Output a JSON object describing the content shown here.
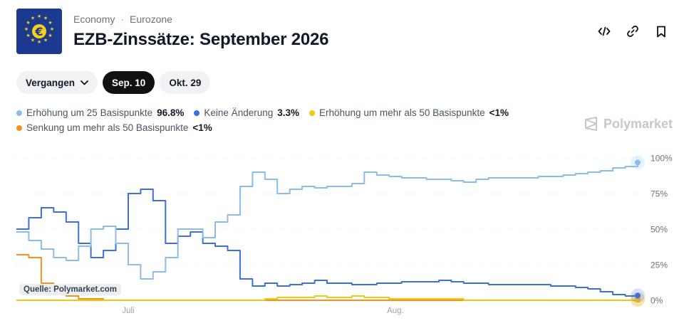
{
  "header": {
    "breadcrumb": [
      "Economy",
      "Eurozone"
    ],
    "title": "EZB-Zinssätze: September 2026",
    "logo_symbol": "€"
  },
  "icons": {
    "logo": "eu-flag-euro-icon",
    "embed": "code-icon",
    "link": "link-icon",
    "bookmark": "bookmark-icon",
    "dropdown": "chevron-down-icon",
    "brand": "polymarket-logo-icon"
  },
  "filters": {
    "dropdown_label": "Vergangen",
    "dates": [
      {
        "label": "Sep. 10",
        "active": true
      },
      {
        "label": "Okt. 29",
        "active": false
      }
    ]
  },
  "legend": [
    {
      "name": "Erhöhung um 25 Basispunkte",
      "value": "96.8%",
      "color": "#8bbcee"
    },
    {
      "name": "Keine Änderung",
      "value": "3.3%",
      "color": "#3d6fe0"
    },
    {
      "name": "Erhöhung um mehr als 50 Basispunkte",
      "value": "<1%",
      "color": "#f2c811"
    },
    {
      "name": "Senkung um mehr als 50 Basispunkte",
      "value": "<1%",
      "color": "#f7931a"
    }
  ],
  "brand": "Polymarket",
  "source": "Quelle: Polymarket.com",
  "chart_data": {
    "type": "line",
    "x": [
      0,
      2,
      4,
      6,
      8,
      10,
      12,
      14,
      16,
      18,
      20,
      22,
      24,
      26,
      28,
      30,
      32,
      34,
      36,
      38,
      40,
      42,
      44,
      46,
      48,
      50,
      52,
      54,
      56,
      58,
      60,
      62,
      64,
      66,
      68,
      70,
      72,
      74,
      76,
      78,
      80,
      82,
      84,
      86,
      88,
      90,
      92,
      94,
      96,
      98,
      100
    ],
    "x_ticks": [
      {
        "label": "Juli",
        "x": 18
      },
      {
        "label": "Aug.",
        "x": 61
      }
    ],
    "y_ticks": [
      "100%",
      "75%",
      "50%",
      "25%",
      "0%"
    ],
    "ylim": [
      0,
      100
    ],
    "grid": true,
    "series": [
      {
        "name": "Erhöhung um 25 Basispunkte",
        "color": "#8bbcee",
        "values": [
          48,
          42,
          36,
          30,
          28,
          38,
          50,
          52,
          40,
          25,
          15,
          20,
          30,
          50,
          50,
          44,
          55,
          60,
          80,
          90,
          85,
          75,
          78,
          80,
          79,
          80,
          80,
          82,
          90,
          88,
          87,
          86,
          86,
          85,
          85,
          84,
          83,
          85,
          86,
          86,
          86,
          86,
          87,
          87,
          88,
          89,
          90,
          91,
          93,
          94,
          96.8
        ]
      },
      {
        "name": "Keine Änderung",
        "color": "#3d6fe0",
        "values": [
          50,
          58,
          65,
          62,
          55,
          40,
          30,
          35,
          50,
          75,
          78,
          70,
          40,
          45,
          48,
          40,
          38,
          35,
          15,
          10,
          12,
          10,
          11,
          12,
          14,
          12,
          12,
          11,
          11,
          12,
          12,
          13,
          13,
          13,
          14,
          13,
          12,
          12,
          11,
          11,
          11,
          11,
          11,
          10,
          10,
          9,
          8,
          6,
          4,
          3,
          3.3
        ]
      },
      {
        "name": "Erhöhung um mehr als 50 Basispunkte",
        "color": "#f2c811",
        "values": [
          0,
          0,
          0,
          0,
          0,
          0,
          0,
          0,
          0,
          0,
          0,
          0,
          0,
          0,
          0,
          0,
          0,
          0,
          0,
          0,
          1,
          2,
          2,
          2,
          3,
          2,
          2,
          3,
          2,
          2,
          1,
          1,
          1,
          1,
          1,
          1,
          0,
          0,
          0,
          0,
          0,
          0,
          0,
          0,
          0,
          0,
          0,
          0,
          0,
          0,
          0.5
        ]
      },
      {
        "name": "Senkung um mehr als 50 Basispunkte",
        "color": "#f7931a",
        "values": [
          32,
          30,
          12,
          5,
          3,
          1,
          1,
          0,
          0,
          0,
          0,
          0,
          0,
          0,
          0,
          0,
          0,
          0,
          0,
          0,
          0,
          0,
          0,
          0,
          0,
          0,
          0,
          0,
          0,
          0,
          0,
          0,
          0,
          0,
          0,
          0,
          0,
          0,
          0,
          0,
          0,
          0,
          0,
          0,
          0,
          0,
          0,
          0,
          0,
          0,
          0.5
        ]
      }
    ]
  }
}
